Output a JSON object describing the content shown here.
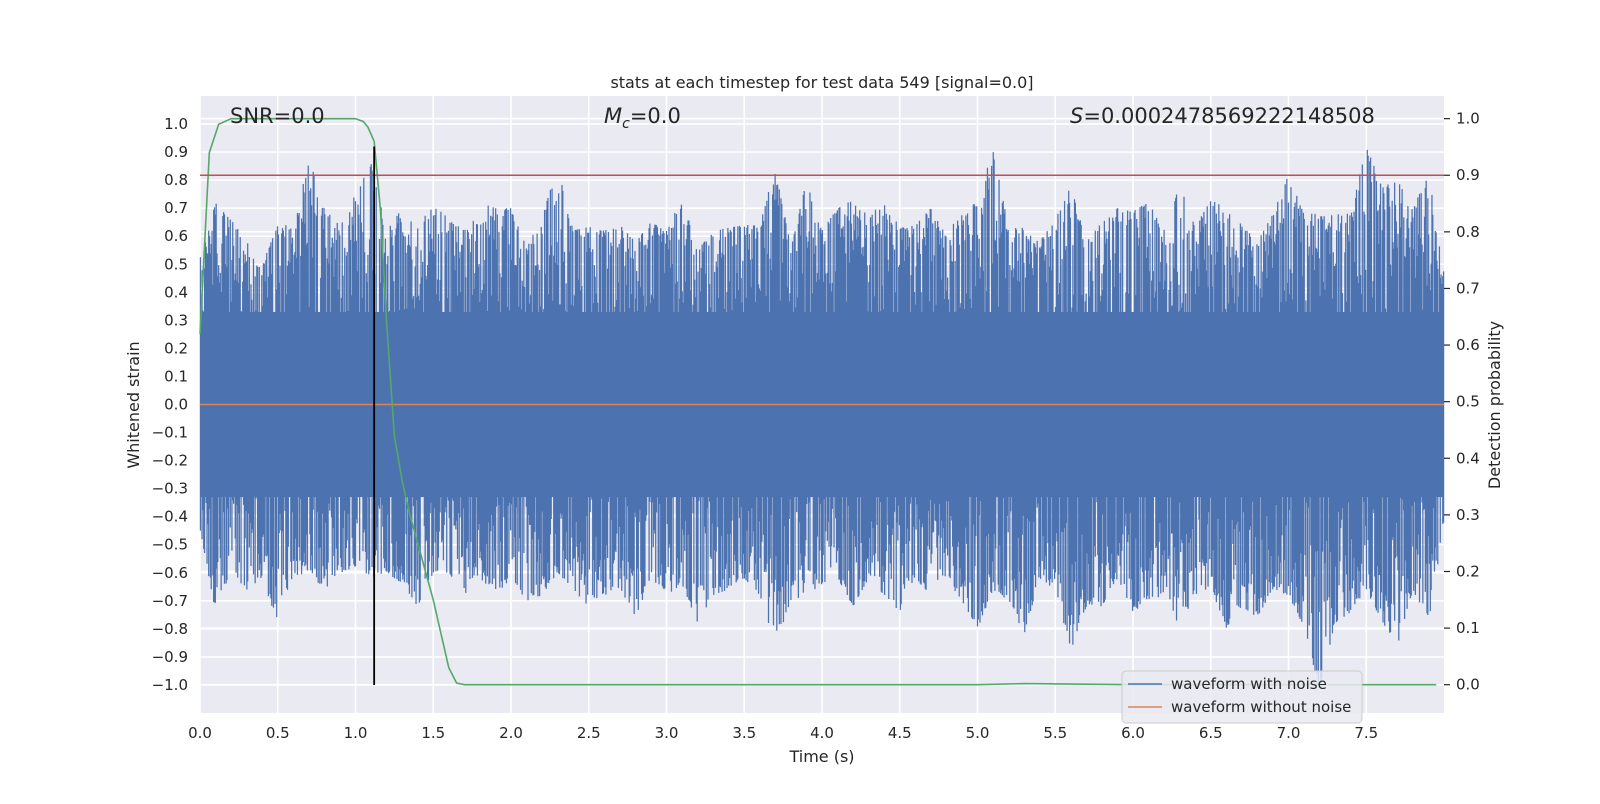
{
  "chart_data": {
    "type": "line",
    "title": "stats at each timestep for test data 549 [signal=0.0]",
    "xlabel": "Time (s)",
    "ylabel": "Whitened strain",
    "ylabel_right": "Detection probability",
    "xlim": [
      0.0,
      8.0
    ],
    "ylim": [
      -1.1,
      1.1
    ],
    "ylim_right": [
      -0.05,
      1.04
    ],
    "x_ticks": [
      "0.0",
      "0.5",
      "1.0",
      "1.5",
      "2.0",
      "2.5",
      "3.0",
      "3.5",
      "4.0",
      "4.5",
      "5.0",
      "5.5",
      "6.0",
      "6.5",
      "7.0",
      "7.5"
    ],
    "y_ticks": [
      "1.0",
      "0.9",
      "0.8",
      "0.7",
      "0.6",
      "0.5",
      "0.4",
      "0.3",
      "0.2",
      "0.1",
      "0.0",
      "−0.1",
      "−0.2",
      "−0.3",
      "−0.4",
      "−0.5",
      "−0.6",
      "−0.7",
      "−0.8",
      "−0.9",
      "−1.0"
    ],
    "y_right_ticks": [
      "1.0",
      "0.9",
      "0.8",
      "0.7",
      "0.6",
      "0.5",
      "0.4",
      "0.3",
      "0.2",
      "0.1",
      "0.0"
    ],
    "annotations": {
      "snr": "SNR=0.0",
      "mc_symbol": "M",
      "mc_sub": "c",
      "mc_value": "=0.0",
      "s_symbol": "S",
      "s_value": "=0.0002478569222148508"
    },
    "threshold_right": 0.9,
    "marker_time": 1.12,
    "noise_envelope": {
      "x": [
        0.0,
        0.1,
        0.2,
        0.3,
        0.4,
        0.5,
        0.6,
        0.7,
        0.8,
        0.9,
        1.0,
        1.1,
        1.2,
        1.3,
        1.4,
        1.5,
        1.6,
        1.7,
        1.8,
        1.9,
        2.0,
        2.1,
        2.2,
        2.3,
        2.4,
        2.5,
        2.6,
        2.7,
        2.8,
        2.9,
        3.0,
        3.1,
        3.2,
        3.3,
        3.4,
        3.5,
        3.6,
        3.7,
        3.8,
        3.9,
        4.0,
        4.1,
        4.2,
        4.3,
        4.4,
        4.5,
        4.6,
        4.7,
        4.8,
        4.9,
        5.0,
        5.1,
        5.2,
        5.3,
        5.4,
        5.5,
        5.6,
        5.7,
        5.8,
        5.9,
        6.0,
        6.1,
        6.2,
        6.3,
        6.4,
        6.5,
        6.6,
        6.7,
        6.8,
        6.9,
        7.0,
        7.1,
        7.2,
        7.3,
        7.4,
        7.5,
        7.6,
        7.7,
        7.8,
        7.9,
        8.0
      ],
      "upper": [
        0.52,
        0.72,
        0.66,
        0.58,
        0.5,
        0.64,
        0.64,
        0.88,
        0.7,
        0.64,
        0.75,
        0.86,
        0.62,
        0.7,
        0.63,
        0.72,
        0.66,
        0.62,
        0.72,
        0.7,
        0.7,
        0.56,
        0.67,
        0.85,
        0.62,
        0.64,
        0.62,
        0.64,
        0.58,
        0.65,
        0.62,
        0.74,
        0.55,
        0.62,
        0.63,
        0.64,
        0.64,
        0.85,
        0.56,
        0.8,
        0.62,
        0.7,
        0.73,
        0.67,
        0.73,
        0.63,
        0.64,
        0.7,
        0.6,
        0.7,
        0.72,
        0.92,
        0.63,
        0.63,
        0.58,
        0.66,
        0.78,
        0.58,
        0.65,
        0.7,
        0.7,
        0.72,
        0.63,
        0.78,
        0.64,
        0.73,
        0.7,
        0.64,
        0.58,
        0.68,
        0.82,
        0.68,
        0.68,
        0.68,
        0.68,
        0.92,
        0.78,
        0.8,
        0.7,
        0.82,
        0.5
      ],
      "lower": [
        -0.45,
        -0.74,
        -0.6,
        -0.66,
        -0.62,
        -0.78,
        -0.62,
        -0.6,
        -0.66,
        -0.6,
        -0.58,
        -0.62,
        -0.6,
        -0.64,
        -0.72,
        -0.6,
        -0.6,
        -0.68,
        -0.62,
        -0.68,
        -0.62,
        -0.7,
        -0.68,
        -0.6,
        -0.66,
        -0.72,
        -0.68,
        -0.66,
        -0.76,
        -0.62,
        -0.68,
        -0.64,
        -0.78,
        -0.68,
        -0.66,
        -0.62,
        -0.68,
        -0.86,
        -0.7,
        -0.68,
        -0.64,
        -0.62,
        -0.72,
        -0.62,
        -0.68,
        -0.74,
        -0.62,
        -0.68,
        -0.62,
        -0.7,
        -0.8,
        -0.66,
        -0.7,
        -0.82,
        -0.62,
        -0.66,
        -0.88,
        -0.72,
        -0.72,
        -0.62,
        -0.74,
        -0.7,
        -0.68,
        -0.8,
        -0.68,
        -0.66,
        -0.8,
        -0.72,
        -0.76,
        -0.66,
        -0.68,
        -0.8,
        -1.02,
        -0.78,
        -0.74,
        -0.66,
        -0.78,
        -0.86,
        -0.66,
        -0.78,
        -0.45
      ]
    },
    "series": [
      {
        "name": "waveform with noise",
        "color": "#4c72b0",
        "axis": "left"
      },
      {
        "name": "waveform without noise",
        "color": "#dd8452",
        "axis": "left",
        "x": [
          0.0,
          8.0
        ],
        "values": [
          0.0,
          0.0
        ]
      },
      {
        "name": "detection probability",
        "color": "#55a868",
        "axis": "right",
        "x": [
          0.0,
          0.06,
          0.12,
          0.2,
          0.3,
          0.4,
          0.5,
          0.6,
          0.7,
          0.8,
          0.9,
          1.0,
          1.05,
          1.08,
          1.12,
          1.16,
          1.2,
          1.25,
          1.3,
          1.35,
          1.4,
          1.45,
          1.5,
          1.55,
          1.6,
          1.65,
          1.7,
          1.8,
          2.0,
          3.0,
          4.0,
          5.0,
          5.3,
          6.0,
          7.0,
          7.95
        ],
        "values": [
          0.62,
          0.94,
          0.99,
          1.0,
          1.0,
          1.0,
          1.0,
          1.0,
          1.0,
          1.0,
          1.0,
          1.0,
          0.995,
          0.985,
          0.96,
          0.84,
          0.64,
          0.44,
          0.36,
          0.3,
          0.25,
          0.2,
          0.15,
          0.09,
          0.03,
          0.003,
          0.0,
          0.0,
          0.0,
          0.0,
          0.0,
          0.0,
          0.002,
          0.0,
          0.0,
          0.0
        ]
      },
      {
        "name": "threshold",
        "color": "#c44e52",
        "axis": "right",
        "x": [
          0.0,
          8.0
        ],
        "values": [
          0.9,
          0.9
        ]
      }
    ],
    "legend": {
      "position": "bottom-right",
      "entries": [
        {
          "label": "waveform with noise",
          "color": "#4c72b0"
        },
        {
          "label": "waveform without noise",
          "color": "#dd8452"
        }
      ]
    },
    "grid": true
  }
}
